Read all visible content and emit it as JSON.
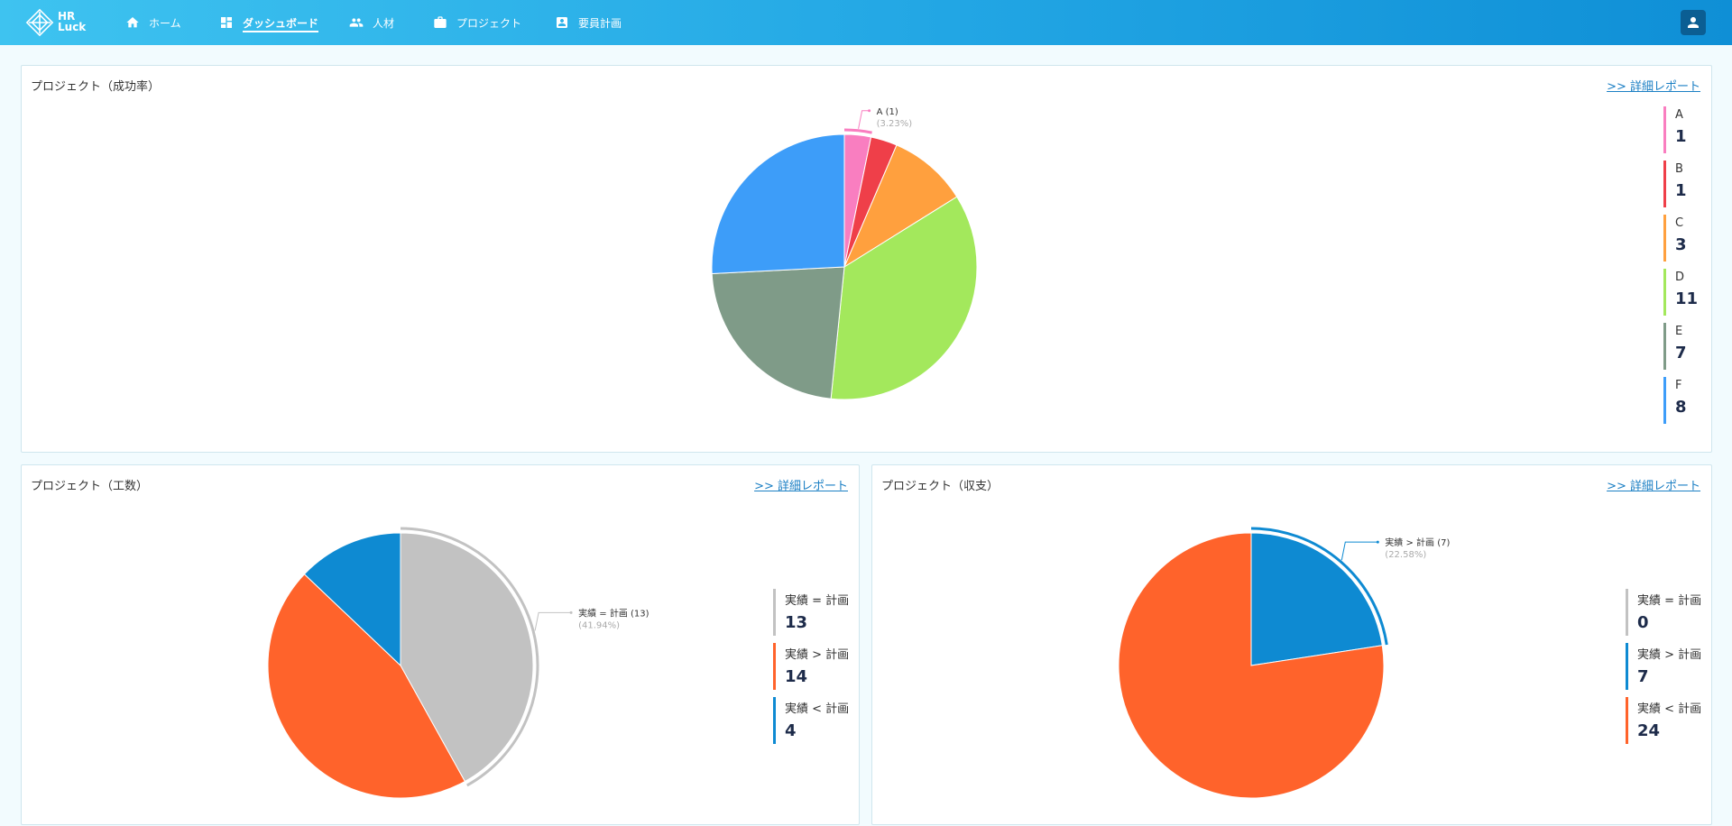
{
  "header": {
    "logo_line1": "HR",
    "logo_line2": "Luck",
    "nav": [
      {
        "label": "ホーム",
        "icon": "home-icon",
        "active": false
      },
      {
        "label": "ダッシュボード",
        "icon": "dashboard-icon",
        "active": true
      },
      {
        "label": "人材",
        "icon": "people-icon",
        "active": false
      },
      {
        "label": "プロジェクト",
        "icon": "briefcase-icon",
        "active": false
      },
      {
        "label": "要員計画",
        "icon": "contact-badge-icon",
        "active": false
      }
    ],
    "user_icon": "account-icon"
  },
  "colors": {
    "header_start": "#3ec3f0",
    "header_end": "#0f8fd6",
    "link": "#1b7fc4"
  },
  "cards": [
    {
      "title": "プロジェクト（成功率）",
      "link": ">> 詳細レポート"
    },
    {
      "title": "プロジェクト（工数）",
      "link": ">> 詳細レポート"
    },
    {
      "title": "プロジェクト（収支）",
      "link": ">> 詳細レポート"
    }
  ],
  "chart_data": [
    {
      "type": "pie",
      "title": "プロジェクト（成功率）",
      "categories": [
        "A",
        "B",
        "C",
        "D",
        "E",
        "F"
      ],
      "values": [
        1,
        1,
        3,
        11,
        7,
        8
      ],
      "colors": [
        "#f97ec0",
        "#ef3f49",
        "#ffa03e",
        "#a3e85c",
        "#7f9b88",
        "#3d9df9"
      ],
      "highlight": {
        "index": 0,
        "label": "A (1)",
        "percent": "(3.23%)"
      },
      "legend_position": "right"
    },
    {
      "type": "pie",
      "title": "プロジェクト（工数）",
      "categories": [
        "実績 = 計画",
        "実績 > 計画",
        "実績 < 計画"
      ],
      "values": [
        13,
        14,
        4
      ],
      "colors": [
        "#c2c2c2",
        "#ff632b",
        "#0e8ad2"
      ],
      "highlight": {
        "index": 0,
        "label": "実績 = 計画 (13)",
        "percent": "(41.94%)"
      },
      "legend_position": "right"
    },
    {
      "type": "pie",
      "title": "プロジェクト（収支）",
      "categories": [
        "実績 = 計画",
        "実績 > 計画",
        "実績 < 計画"
      ],
      "values": [
        0,
        7,
        24
      ],
      "colors": [
        "#c2c2c2",
        "#0e8ad2",
        "#ff632b"
      ],
      "highlight": {
        "index": 1,
        "label": "実績 > 計画 (7)",
        "percent": "(22.58%)"
      },
      "legend_position": "right"
    }
  ]
}
